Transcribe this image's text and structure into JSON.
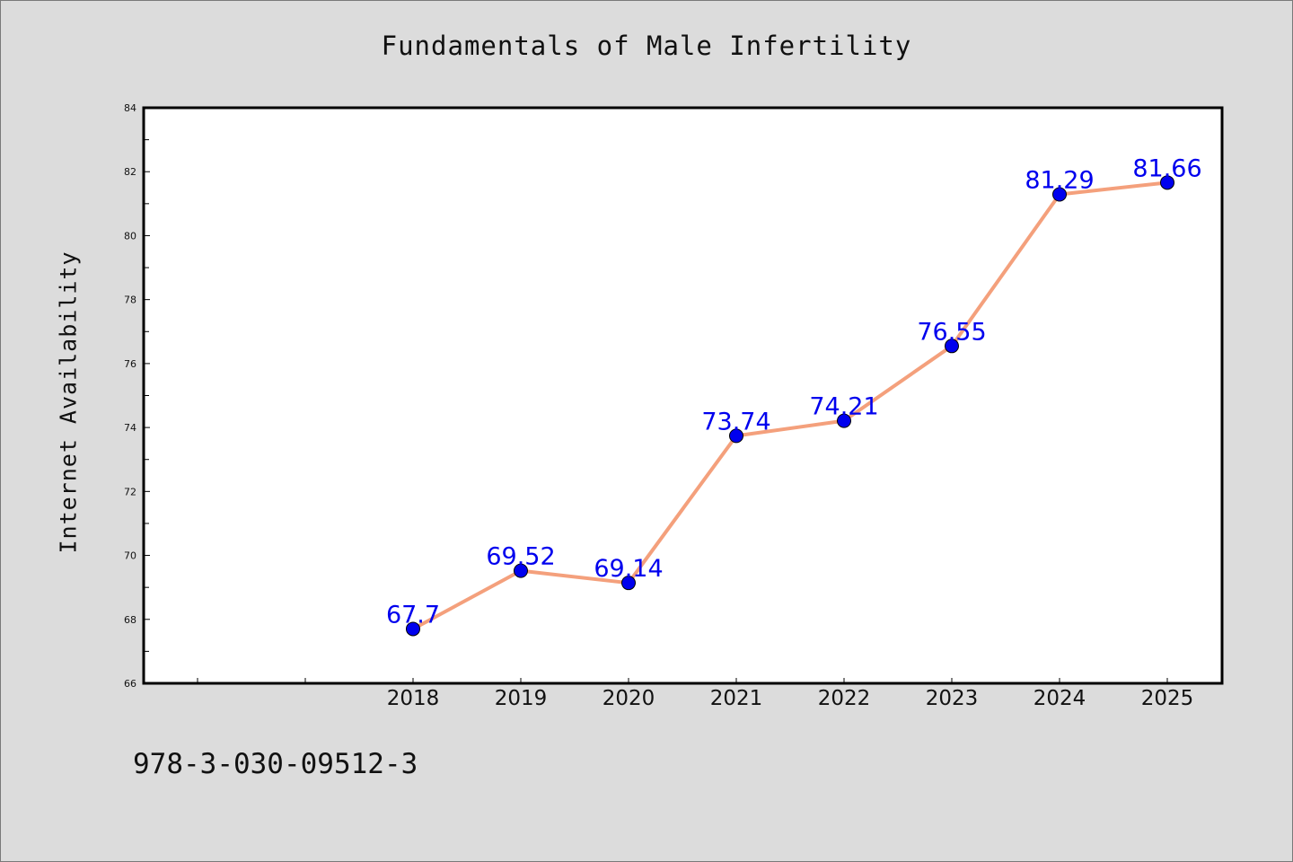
{
  "chart_data": {
    "type": "line",
    "title": "Fundamentals of Male Infertility",
    "xlabel": "",
    "ylabel": "Internet Availability",
    "categories": [
      "2018",
      "2019",
      "2020",
      "2021",
      "2022",
      "2023",
      "2024",
      "2025"
    ],
    "series": [
      {
        "values": [
          67.7,
          69.52,
          69.14,
          73.74,
          74.21,
          76.55,
          81.29,
          81.66
        ],
        "data_labels": [
          "67.7",
          "69.52",
          "69.14",
          "73.74",
          "74.21",
          "76.55",
          "81.29",
          "81.66"
        ],
        "line_color": "#f4a07c",
        "marker_color": "#0000ee",
        "label_color": "#0000ee"
      }
    ],
    "ylim": [
      66,
      84
    ],
    "yticks": [
      "66",
      "68",
      "70",
      "72",
      "74",
      "76",
      "78",
      "80",
      "82",
      "84"
    ],
    "grid": false,
    "legend": "none"
  },
  "footer": {
    "code": "978-3-030-09512-3"
  },
  "colors": {
    "background": "#dcdcdc",
    "plot_background": "#ffffff"
  }
}
